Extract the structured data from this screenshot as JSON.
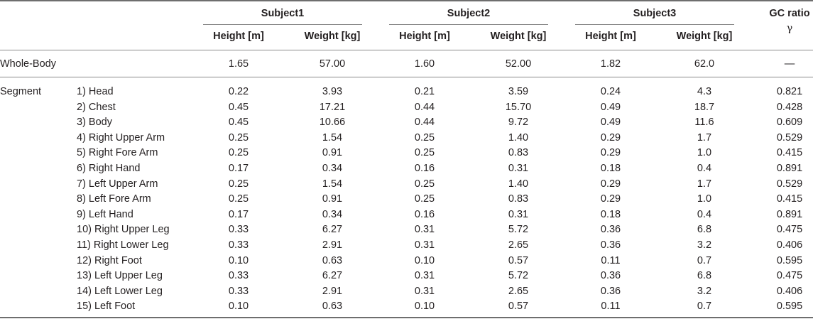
{
  "header": {
    "subjects": [
      "Subject1",
      "Subject2",
      "Subject3"
    ],
    "height_label": "Height [m]",
    "weight_label": "Weight [kg]",
    "gc_label": "GC ratio",
    "gc_symbol": "γ"
  },
  "whole_body": {
    "label": "Whole-Body",
    "values": [
      "1.65",
      "57.00",
      "1.60",
      "52.00",
      "1.82",
      "62.0"
    ],
    "gc": "—"
  },
  "segment_label": "Segment",
  "rows": [
    {
      "name": "1) Head",
      "values": [
        "0.22",
        "3.93",
        "0.21",
        "3.59",
        "0.24",
        "4.3",
        "0.821"
      ]
    },
    {
      "name": "2) Chest",
      "values": [
        "0.45",
        "17.21",
        "0.44",
        "15.70",
        "0.49",
        "18.7",
        "0.428"
      ]
    },
    {
      "name": "3) Body",
      "values": [
        "0.45",
        "10.66",
        "0.44",
        "9.72",
        "0.49",
        "11.6",
        "0.609"
      ]
    },
    {
      "name": "4) Right Upper Arm",
      "values": [
        "0.25",
        "1.54",
        "0.25",
        "1.40",
        "0.29",
        "1.7",
        "0.529"
      ]
    },
    {
      "name": "5) Right Fore Arm",
      "values": [
        "0.25",
        "0.91",
        "0.25",
        "0.83",
        "0.29",
        "1.0",
        "0.415"
      ]
    },
    {
      "name": "6) Right Hand",
      "values": [
        "0.17",
        "0.34",
        "0.16",
        "0.31",
        "0.18",
        "0.4",
        "0.891"
      ]
    },
    {
      "name": "7) Left Upper Arm",
      "values": [
        "0.25",
        "1.54",
        "0.25",
        "1.40",
        "0.29",
        "1.7",
        "0.529"
      ]
    },
    {
      "name": "8) Left Fore Arm",
      "values": [
        "0.25",
        "0.91",
        "0.25",
        "0.83",
        "0.29",
        "1.0",
        "0.415"
      ]
    },
    {
      "name": "9) Left Hand",
      "values": [
        "0.17",
        "0.34",
        "0.16",
        "0.31",
        "0.18",
        "0.4",
        "0.891"
      ]
    },
    {
      "name": "10) Right Upper Leg",
      "values": [
        "0.33",
        "6.27",
        "0.31",
        "5.72",
        "0.36",
        "6.8",
        "0.475"
      ]
    },
    {
      "name": "11) Right Lower Leg",
      "values": [
        "0.33",
        "2.91",
        "0.31",
        "2.65",
        "0.36",
        "3.2",
        "0.406"
      ]
    },
    {
      "name": "12) Right Foot",
      "values": [
        "0.10",
        "0.63",
        "0.10",
        "0.57",
        "0.11",
        "0.7",
        "0.595"
      ]
    },
    {
      "name": "13) Left Upper Leg",
      "values": [
        "0.33",
        "6.27",
        "0.31",
        "5.72",
        "0.36",
        "6.8",
        "0.475"
      ]
    },
    {
      "name": "14) Left Lower Leg",
      "values": [
        "0.33",
        "2.91",
        "0.31",
        "2.65",
        "0.36",
        "3.2",
        "0.406"
      ]
    },
    {
      "name": "15) Left Foot",
      "values": [
        "0.10",
        "0.63",
        "0.10",
        "0.57",
        "0.11",
        "0.7",
        "0.595"
      ]
    }
  ]
}
